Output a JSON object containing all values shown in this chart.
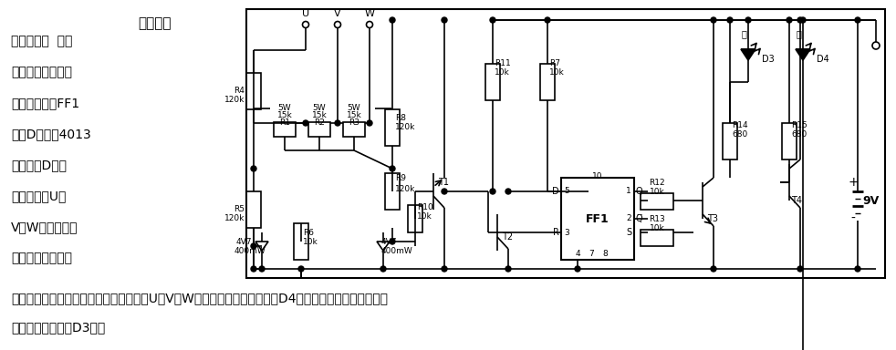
{
  "title_text": "三相电源",
  "text_lines": [
    "相序指示器  本电",
    "路可判断交流电源",
    "的相位关系。FF1",
    "是双D触发器4013",
    "中的一个D触发",
    "器。电路的U、",
    "V、W三端直接接",
    "到三相电源上。如"
  ],
  "bottom_text1": "果交流电源的相位关系是顺时针排列即按U、V、W顺序排列，则绿色发光管D4点亮；如果相位是逆时针排",
  "bottom_text2": "列，则红色发光管D3亮。",
  "bg_color": "#ffffff",
  "fg_color": "#000000"
}
